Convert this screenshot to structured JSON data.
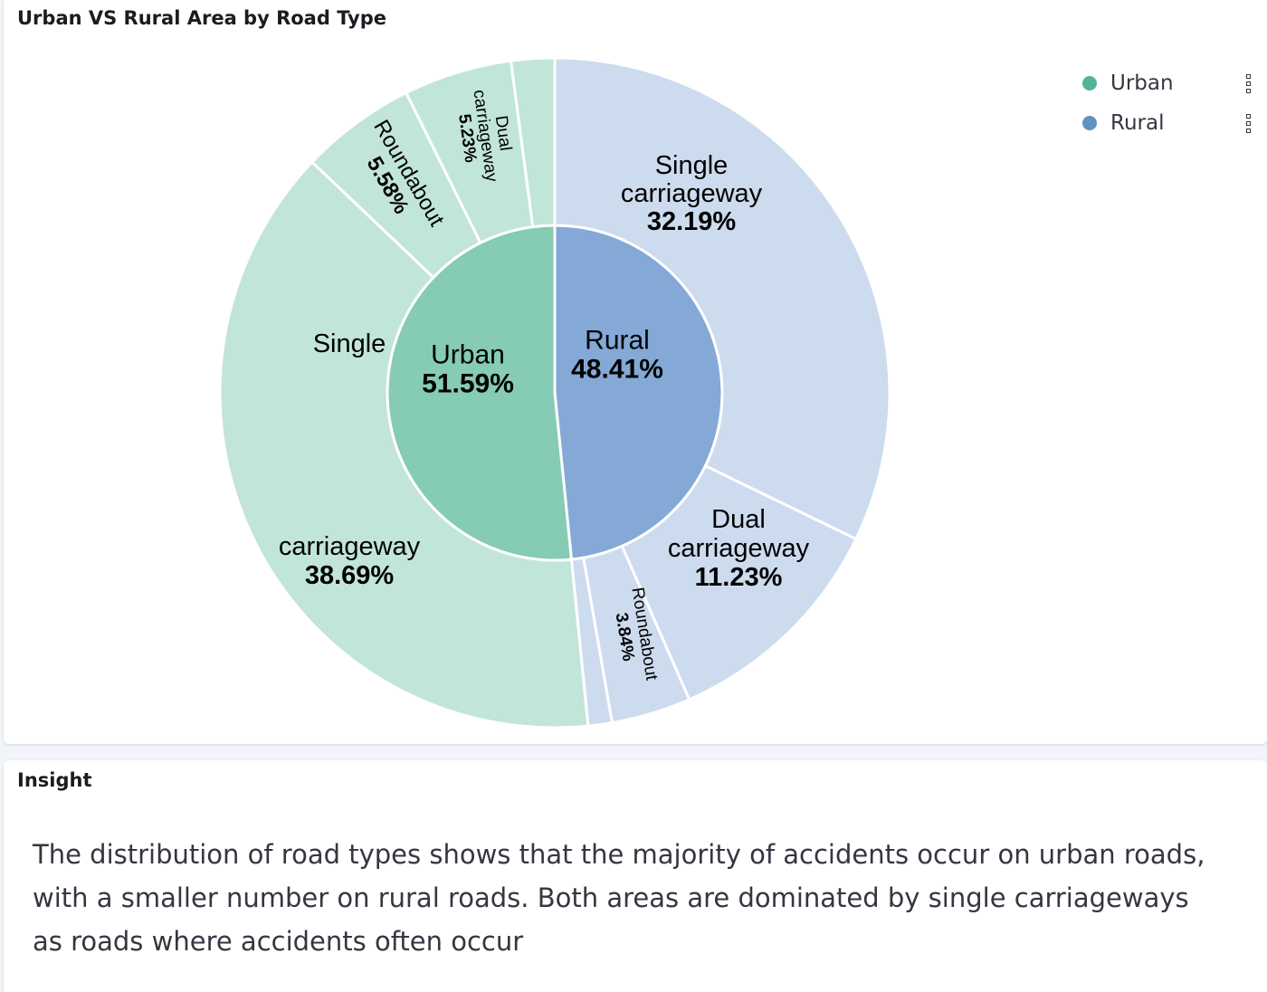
{
  "panels": {
    "chart_title": "Urban VS Rural Area by Road Type",
    "insight_title": "Insight",
    "insight_text": "The distribution of road types shows that the majority of accidents occur on urban roads, with a smaller number on rural roads. Both areas are dominated by single carriageways as roads where accidents often occur"
  },
  "legend": [
    {
      "label": "Urban",
      "color": "#54b399",
      "menu_icon": "more-vertical-icon"
    },
    {
      "label": "Rural",
      "color": "#6092c0",
      "menu_icon": "more-vertical-icon"
    }
  ],
  "chart_data": {
    "type": "sunburst",
    "title": "Urban VS Rural Area by Road Type",
    "inner": [
      {
        "name": "Rural",
        "value": 48.41,
        "label": "48.41%",
        "color": "#85a9d6"
      },
      {
        "name": "Urban",
        "value": 51.59,
        "label": "51.59%",
        "color": "#86cbb3"
      }
    ],
    "outer": [
      {
        "parent": "Rural",
        "lines": [
          "Single",
          "carriageway"
        ],
        "value": 32.19,
        "label": "32.19%",
        "color": "#cddbee"
      },
      {
        "parent": "Rural",
        "lines": [
          "Dual",
          "carriageway"
        ],
        "value": 11.23,
        "label": "11.23%",
        "color": "#cddbee"
      },
      {
        "parent": "Rural",
        "lines": [
          "Roundabout"
        ],
        "value": 3.84,
        "label": "3.84%",
        "color": "#cddbee"
      },
      {
        "parent": "Rural",
        "lines": [],
        "value": 1.15,
        "label": "",
        "color": "#cddbee"
      },
      {
        "parent": "Urban",
        "lines": [
          "Single",
          "carriageway"
        ],
        "value": 38.69,
        "label": "38.69%",
        "color": "#c2e5da"
      },
      {
        "parent": "Urban",
        "lines": [
          "Roundabout"
        ],
        "value": 5.58,
        "label": "5.58%",
        "color": "#c2e5da"
      },
      {
        "parent": "Urban",
        "lines": [
          "Dual",
          "carriageway"
        ],
        "value": 5.23,
        "label": "5.23%",
        "color": "#c2e5da"
      },
      {
        "parent": "Urban",
        "lines": [],
        "value": 2.09,
        "label": "",
        "color": "#c2e5da"
      }
    ]
  }
}
